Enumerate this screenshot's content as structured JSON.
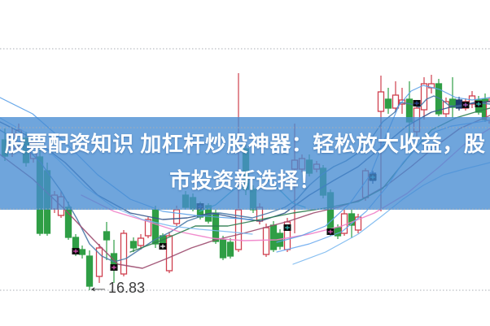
{
  "page": {
    "background": "#ffffff"
  },
  "banner": {
    "line1": "股票配资知识 加杠杆炒股神器：轻松放大收益，股",
    "line2": "市投资新选择！",
    "text_color": "#ffffff",
    "bg_color": "rgba(70,140,210,0.78)"
  },
  "chart_data": {
    "type": "candlestick",
    "title": "",
    "xlabel": "",
    "ylabel": "",
    "grid": "dotted-horizontal",
    "legend": "none",
    "ylim": [
      16.39,
      20.4
    ],
    "gridline_prices": [
      19.8,
      18.83,
      17.83,
      16.83
    ],
    "annotation": {
      "arrow": "←",
      "text": "16.83",
      "x": 110,
      "price": 16.83
    },
    "colors": {
      "up_hollow_red": "#cf3f4e",
      "down_green": "#2f9e45",
      "navy_candle": "#1e3a6e",
      "marker_black": "#0d0d0d",
      "grid": "#a9aeb5"
    },
    "candles": [
      [
        6,
        18.82,
        18.68,
        18.48,
        18.42,
        "d"
      ],
      [
        15,
        18.82,
        18.75,
        18.57,
        18.47,
        "u"
      ],
      [
        23,
        18.88,
        18.8,
        18.6,
        18.55,
        "u"
      ],
      [
        32,
        18.78,
        18.7,
        18.4,
        18.35,
        "d"
      ],
      [
        41,
        18.72,
        18.65,
        18.45,
        18.4,
        "u"
      ],
      [
        49,
        18.62,
        18.47,
        17.53,
        17.5,
        "d"
      ],
      [
        58,
        18.4,
        18.3,
        17.53,
        17.5,
        "d"
      ],
      [
        67,
        18.05,
        18.0,
        17.83,
        17.78,
        "u"
      ],
      [
        75,
        18.05,
        17.98,
        17.75,
        17.72,
        "u"
      ],
      [
        84,
        17.92,
        17.85,
        17.48,
        17.45,
        "d"
      ],
      [
        93,
        17.52,
        17.48,
        17.33,
        17.25,
        "d"
      ],
      [
        101,
        17.38,
        17.33,
        17.27,
        17.22,
        "d"
      ],
      [
        110,
        17.32,
        17.25,
        16.88,
        16.83,
        "d"
      ],
      [
        122,
        17.4,
        17.35,
        17.0,
        16.92,
        "u"
      ],
      [
        131,
        17.67,
        17.55,
        17.45,
        17.2,
        "d"
      ],
      [
        140,
        17.45,
        17.28,
        17.13,
        16.92,
        "d"
      ],
      [
        152,
        17.57,
        17.53,
        17.03,
        17.0,
        "u"
      ],
      [
        164,
        17.48,
        17.43,
        17.35,
        17.3,
        "d"
      ],
      [
        173,
        17.52,
        17.47,
        17.38,
        17.33,
        "u"
      ],
      [
        182,
        17.73,
        17.7,
        17.5,
        17.47,
        "u"
      ],
      [
        191,
        17.87,
        17.82,
        17.4,
        17.35,
        "d"
      ],
      [
        200,
        17.53,
        17.5,
        17.4,
        17.35,
        "d"
      ],
      [
        208,
        17.55,
        17.5,
        17.07,
        17.04,
        "u"
      ],
      [
        217,
        17.87,
        17.82,
        17.65,
        17.62,
        "u"
      ],
      [
        228,
        18.05,
        18.0,
        17.85,
        17.82,
        "d"
      ],
      [
        237,
        18.02,
        17.97,
        17.83,
        17.8,
        "d"
      ],
      [
        246,
        17.92,
        17.87,
        17.73,
        17.7,
        "d"
      ],
      [
        256,
        17.9,
        17.87,
        17.68,
        17.65,
        "d"
      ],
      [
        265,
        17.82,
        17.78,
        17.43,
        17.4,
        "d"
      ],
      [
        274,
        17.5,
        17.45,
        17.23,
        17.2,
        "d"
      ],
      [
        283,
        17.47,
        17.42,
        17.25,
        17.22,
        "d"
      ],
      [
        293,
        19.5,
        17.82,
        17.33,
        17.3,
        "u"
      ],
      [
        302,
        18.62,
        18.57,
        18.07,
        18.0,
        "d"
      ],
      [
        311,
        18.12,
        18.07,
        17.82,
        17.78,
        "d"
      ],
      [
        319,
        17.9,
        17.85,
        17.68,
        17.64,
        "u"
      ],
      [
        327,
        17.65,
        17.6,
        17.27,
        17.24,
        "u"
      ],
      [
        336,
        17.68,
        17.63,
        17.33,
        17.3,
        "d"
      ],
      [
        344,
        17.58,
        17.53,
        17.37,
        17.33,
        "d"
      ],
      [
        353,
        17.72,
        17.67,
        17.33,
        17.3,
        "u"
      ],
      [
        362,
        18.88,
        18.43,
        18.32,
        17.53,
        "u"
      ],
      [
        371,
        18.5,
        18.45,
        18.32,
        18.28,
        "u"
      ],
      [
        380,
        18.5,
        18.43,
        18.27,
        18.23,
        "d"
      ],
      [
        389,
        18.42,
        18.38,
        18.32,
        18.28,
        "u"
      ],
      [
        397,
        18.37,
        18.33,
        18.0,
        17.96,
        "d"
      ],
      [
        406,
        18.07,
        18.03,
        17.53,
        17.5,
        "d"
      ],
      [
        415,
        17.64,
        17.6,
        17.5,
        17.46,
        "d"
      ],
      [
        423,
        17.82,
        17.77,
        17.53,
        17.5,
        "u"
      ],
      [
        432,
        17.82,
        17.77,
        17.63,
        17.47,
        "d"
      ],
      [
        440,
        17.77,
        17.73,
        17.57,
        17.53,
        "u"
      ],
      [
        449,
        18.33,
        18.3,
        17.97,
        17.93,
        "u"
      ],
      [
        458,
        18.3,
        18.27,
        18.18,
        18.14,
        "n"
      ],
      [
        468,
        19.47,
        19.27,
        19.03,
        17.8,
        "u"
      ],
      [
        477,
        19.32,
        19.18,
        19.07,
        19.0,
        "d"
      ],
      [
        486,
        19.4,
        19.23,
        19.07,
        19.02,
        "u"
      ],
      [
        494,
        19.32,
        19.17,
        19.12,
        19.0,
        "u"
      ],
      [
        503,
        19.4,
        19.18,
        18.9,
        18.7,
        "d"
      ],
      [
        512,
        19.12,
        19.07,
        18.78,
        18.72,
        "u"
      ],
      [
        521,
        19.45,
        19.37,
        19.05,
        18.93,
        "u"
      ],
      [
        530,
        19.48,
        19.37,
        19.32,
        19.25,
        "u"
      ],
      [
        539,
        19.43,
        19.37,
        19.0,
        18.97,
        "d"
      ],
      [
        548,
        19.2,
        19.15,
        19.0,
        18.96,
        "u"
      ],
      [
        556,
        19.45,
        19.18,
        19.08,
        18.95,
        "d"
      ],
      [
        564,
        19.21,
        19.17,
        19.07,
        19.04,
        "n"
      ],
      [
        572,
        19.19,
        19.15,
        19.07,
        19.04,
        "u"
      ],
      [
        580,
        19.28,
        19.22,
        19.12,
        19.07,
        "u"
      ],
      [
        588,
        19.22,
        19.17,
        19.02,
        18.99,
        "d"
      ],
      [
        596,
        19.25,
        19.18,
        18.93,
        18.9,
        "d"
      ],
      [
        601,
        19.2,
        19.15,
        18.92,
        18.88,
        "u"
      ]
    ],
    "markers": [
      [
        93,
        17.31,
        "#e050b8"
      ],
      [
        140,
        17.11,
        "#e050b8"
      ],
      [
        200,
        17.37,
        "#ffffff"
      ],
      [
        246,
        17.86,
        "#3048a0"
      ],
      [
        353,
        17.6,
        "#30c0b8"
      ],
      [
        406,
        17.55,
        "#e050b8"
      ],
      [
        458,
        18.22,
        "#30c0b8"
      ],
      [
        512,
        19.13,
        "#3048a0"
      ],
      [
        572,
        19.11,
        "#b060d0"
      ],
      [
        588,
        19.12,
        "#30c0b8"
      ]
    ],
    "ma_lines": [
      {
        "name": "ma-steelblue",
        "color": "#4a7aa8",
        "width": 1.4,
        "points": [
          [
            0,
            18.8
          ],
          [
            25,
            18.65
          ],
          [
            50,
            18.4
          ],
          [
            75,
            18.05
          ],
          [
            95,
            17.7
          ],
          [
            110,
            17.4
          ],
          [
            125,
            17.25
          ],
          [
            140,
            17.18
          ],
          [
            155,
            17.22
          ],
          [
            170,
            17.32
          ],
          [
            190,
            17.45
          ],
          [
            210,
            17.55
          ],
          [
            230,
            17.68
          ],
          [
            250,
            17.75
          ],
          [
            270,
            17.78
          ],
          [
            290,
            17.75
          ],
          [
            310,
            17.72
          ],
          [
            330,
            17.78
          ],
          [
            350,
            17.85
          ],
          [
            365,
            17.95
          ],
          [
            380,
            18.12
          ],
          [
            395,
            18.25
          ],
          [
            410,
            18.35
          ],
          [
            425,
            18.42
          ],
          [
            440,
            18.52
          ],
          [
            455,
            18.68
          ],
          [
            470,
            18.9
          ],
          [
            485,
            19.02
          ],
          [
            492,
            19.14
          ],
          [
            505,
            19.12
          ],
          [
            515,
            19.08
          ],
          [
            524,
            19.18
          ],
          [
            533,
            19.22
          ],
          [
            542,
            19.18
          ],
          [
            552,
            19.1
          ],
          [
            562,
            19.09
          ],
          [
            572,
            19.11
          ],
          [
            582,
            19.14
          ],
          [
            592,
            19.13
          ],
          [
            602,
            19.12
          ]
        ]
      },
      {
        "name": "ma-navy",
        "color": "#34558b",
        "width": 1.4,
        "points": [
          [
            0,
            18.9
          ],
          [
            40,
            18.7
          ],
          [
            80,
            18.4
          ],
          [
            120,
            18.0
          ],
          [
            160,
            17.78
          ],
          [
            200,
            17.7
          ],
          [
            230,
            17.72
          ],
          [
            260,
            17.78
          ],
          [
            290,
            17.72
          ],
          [
            320,
            17.68
          ],
          [
            350,
            17.78
          ],
          [
            380,
            18.0
          ],
          [
            410,
            18.18
          ],
          [
            440,
            18.35
          ],
          [
            470,
            18.6
          ],
          [
            500,
            18.85
          ],
          [
            530,
            19.02
          ],
          [
            560,
            19.1
          ],
          [
            590,
            19.14
          ],
          [
            602,
            19.15
          ]
        ]
      },
      {
        "name": "ma-maroon",
        "color": "#9c4a6e",
        "width": 1.4,
        "points": [
          [
            0,
            18.5
          ],
          [
            40,
            18.2
          ],
          [
            80,
            17.82
          ],
          [
            115,
            17.45
          ],
          [
            145,
            17.15
          ],
          [
            175,
            17.1
          ],
          [
            205,
            17.22
          ],
          [
            235,
            17.35
          ],
          [
            265,
            17.45
          ],
          [
            295,
            17.52
          ],
          [
            325,
            17.6
          ],
          [
            355,
            17.68
          ],
          [
            385,
            17.78
          ],
          [
            415,
            17.85
          ],
          [
            445,
            17.95
          ],
          [
            475,
            18.12
          ],
          [
            505,
            18.35
          ],
          [
            535,
            18.6
          ],
          [
            565,
            18.82
          ],
          [
            602,
            18.98
          ]
        ]
      },
      {
        "name": "ma-pink",
        "color": "#f080c8",
        "width": 1.4,
        "points": [
          [
            100,
            18.0
          ],
          [
            140,
            17.8
          ],
          [
            180,
            17.68
          ],
          [
            220,
            17.55
          ],
          [
            260,
            17.47
          ],
          [
            300,
            17.44
          ],
          [
            340,
            17.45
          ],
          [
            380,
            17.52
          ],
          [
            420,
            17.62
          ],
          [
            460,
            17.78
          ],
          [
            500,
            18.02
          ],
          [
            540,
            18.35
          ],
          [
            570,
            18.62
          ],
          [
            602,
            18.82
          ]
        ]
      },
      {
        "name": "ma-darkgreen",
        "color": "#2e7d4f",
        "width": 1.4,
        "points": [
          [
            160,
            17.3
          ],
          [
            200,
            17.45
          ],
          [
            240,
            17.62
          ],
          [
            280,
            17.62
          ],
          [
            320,
            17.7
          ],
          [
            360,
            17.78
          ],
          [
            400,
            17.84
          ],
          [
            440,
            17.92
          ],
          [
            470,
            18.08
          ],
          [
            500,
            18.45
          ],
          [
            530,
            18.8
          ],
          [
            560,
            18.95
          ],
          [
            590,
            19.04
          ],
          [
            602,
            19.07
          ]
        ]
      },
      {
        "name": "band-upper",
        "color": "#5aa0e8",
        "width": 1.2,
        "points": [
          [
            340,
            17.42
          ],
          [
            370,
            17.5
          ],
          [
            400,
            17.62
          ],
          [
            430,
            17.9
          ],
          [
            455,
            18.25
          ],
          [
            475,
            18.75
          ],
          [
            490,
            19.1
          ],
          [
            505,
            19.28
          ],
          [
            520,
            19.35
          ],
          [
            540,
            19.3
          ],
          [
            560,
            19.2
          ],
          [
            580,
            19.17
          ],
          [
            602,
            19.2
          ]
        ]
      },
      {
        "name": "band-mid",
        "color": "#6aaaf0",
        "width": 1.2,
        "points": [
          [
            340,
            17.3
          ],
          [
            380,
            17.4
          ],
          [
            420,
            17.55
          ],
          [
            450,
            17.8
          ],
          [
            475,
            18.1
          ],
          [
            495,
            18.4
          ],
          [
            515,
            18.62
          ],
          [
            535,
            18.78
          ],
          [
            555,
            18.85
          ],
          [
            575,
            18.88
          ],
          [
            602,
            18.92
          ]
        ]
      },
      {
        "name": "band-lower",
        "color": "#7ab8f0",
        "width": 1.2,
        "points": [
          [
            360,
            17.15
          ],
          [
            400,
            17.3
          ],
          [
            440,
            17.52
          ],
          [
            470,
            17.75
          ],
          [
            495,
            17.95
          ],
          [
            520,
            18.12
          ],
          [
            545,
            18.25
          ],
          [
            570,
            18.32
          ],
          [
            602,
            18.4
          ]
        ]
      },
      {
        "name": "band-left-1",
        "color": "#5aa0e8",
        "width": 1.2,
        "points": [
          [
            0,
            19.2
          ],
          [
            40,
            19.0
          ],
          [
            80,
            18.65
          ],
          [
            120,
            18.25
          ],
          [
            160,
            17.95
          ],
          [
            200,
            17.8
          ],
          [
            240,
            17.75
          ],
          [
            280,
            17.72
          ],
          [
            310,
            17.7
          ]
        ]
      },
      {
        "name": "band-left-2",
        "color": "#7ab8f0",
        "width": 1.2,
        "points": [
          [
            0,
            18.95
          ],
          [
            35,
            18.75
          ],
          [
            70,
            18.45
          ],
          [
            105,
            18.1
          ],
          [
            140,
            17.85
          ],
          [
            175,
            17.7
          ],
          [
            210,
            17.62
          ],
          [
            245,
            17.58
          ],
          [
            280,
            17.55
          ],
          [
            310,
            17.52
          ]
        ]
      },
      {
        "name": "cyan-hump",
        "color": "#3ab0c8",
        "width": 1.3,
        "points": [
          [
            245,
            17.8
          ],
          [
            265,
            17.88
          ],
          [
            285,
            18.05
          ],
          [
            305,
            18.2
          ],
          [
            325,
            18.22
          ],
          [
            345,
            18.05
          ],
          [
            360,
            17.9
          ],
          [
            375,
            17.85
          ]
        ]
      }
    ]
  }
}
